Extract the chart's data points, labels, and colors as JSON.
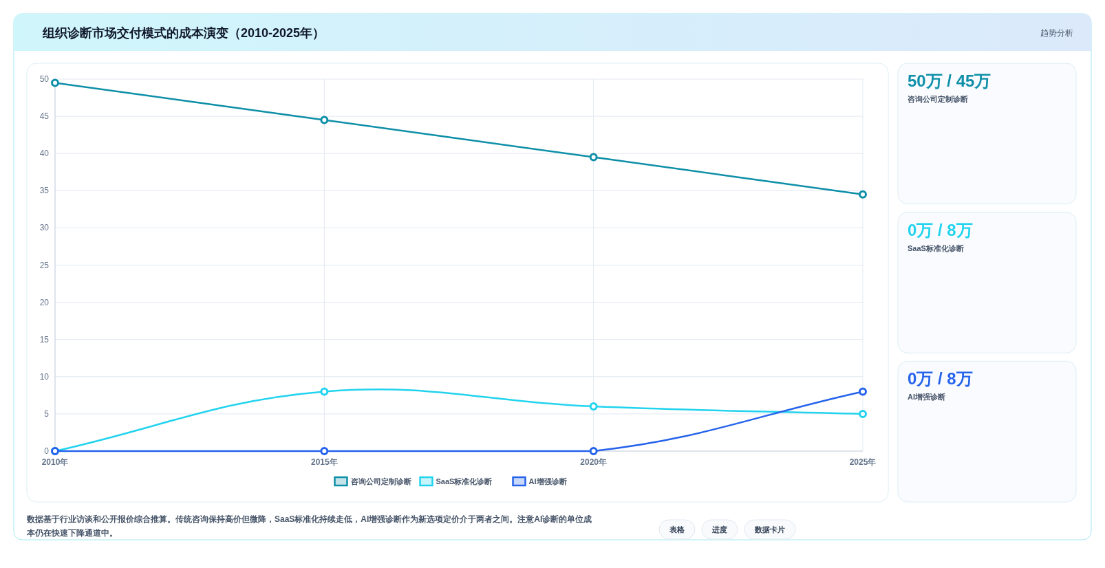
{
  "chart_data": [
    {
      "type": "line",
      "title": "组织诊断市场交付模式的成本演变（2010-2025年）",
      "categories": [
        "2010年",
        "2015年",
        "2020年",
        "2025年"
      ],
      "series": [
        {
          "name": "咨询公司定制诊断",
          "color": "#0e8fa8",
          "values": [
            49.5,
            44.5,
            39.5,
            34.5
          ]
        },
        {
          "name": "SaaS标准化诊断",
          "color": "#22d3ee",
          "values": [
            0,
            8,
            6,
            5
          ]
        },
        {
          "name": "AI增强诊断",
          "color": "#2563eb",
          "values": [
            0,
            0,
            0,
            8
          ]
        }
      ],
      "ylim": [
        0,
        50
      ],
      "yticks": [
        0,
        5,
        10,
        15,
        20,
        25,
        30,
        35,
        40,
        45,
        50
      ],
      "grid": true,
      "legend": "bottom",
      "marker": "circle",
      "line_style": "solid",
      "annotations": [
        "数据基于行业访谈和公开报价综合推算。传统咨询保持高价但微降，SaaS标准化持续走低，AI增强诊断作为新选项定价介于两者之间。注意AI诊断的单位成本仍在快速下降通道中。",
        "表格",
        "进度",
        "数据卡片"
      ]
    },
    {
      "type": "other",
      "title": "趋势分析",
      "annotations": [
        "50万 / 45万",
        "咨询公司定制诊断",
        "0万 / 8万",
        "SaaS标准化诊断",
        "0万 / 8万",
        "AI增强诊断"
      ],
      "colors": [
        "#0e8fa8",
        "#22d3ee",
        "#2563eb"
      ]
    }
  ]
}
